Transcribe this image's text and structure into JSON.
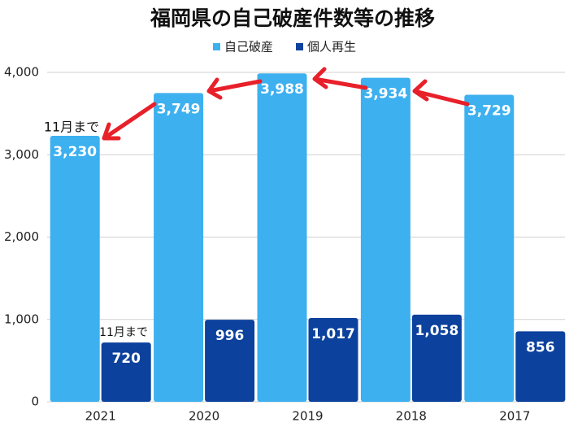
{
  "chart_data": {
    "type": "bar",
    "title": "福岡県の自己破産件数等の推移",
    "categories": [
      "2021",
      "2020",
      "2019",
      "2018",
      "2017"
    ],
    "series": [
      {
        "name": "自己破産",
        "color": "#3db0ef",
        "values": [
          3230,
          3749,
          3988,
          3934,
          3729
        ],
        "value_labels": [
          "3,230",
          "3,749",
          "3,988",
          "3,934",
          "3,729"
        ]
      },
      {
        "name": "個人再生",
        "color": "#0c419d",
        "values": [
          720,
          996,
          1017,
          1058,
          856
        ],
        "value_labels": [
          "720",
          "996",
          "1,017",
          "1,058",
          "856"
        ]
      }
    ],
    "annotations": [
      "11月まで",
      "11月まで"
    ],
    "ylim": [
      0,
      4000
    ],
    "yticks": [
      0,
      {
        "value": 1000,
        "label": "1,000"
      },
      {
        "value": 2000,
        "label": "2,000"
      },
      {
        "value": 3000,
        "label": "3,000"
      },
      {
        "value": 4000,
        "label": "4,000"
      }
    ],
    "grid": true
  }
}
